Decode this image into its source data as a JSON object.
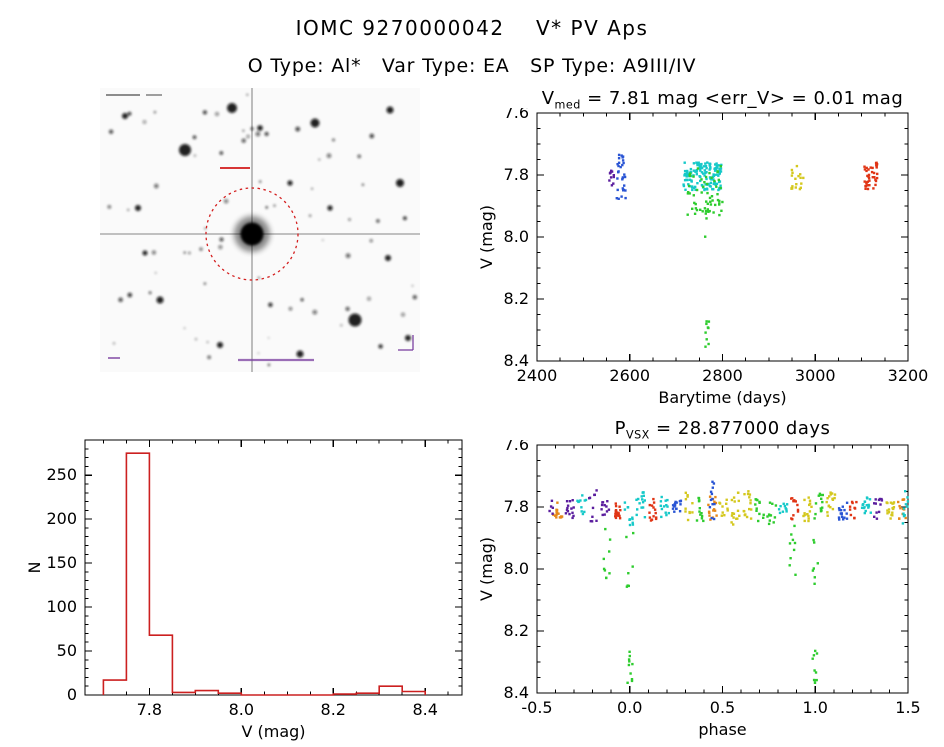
{
  "page": {
    "title": "IOMC 9270000042    V* PV Aps",
    "subtitle": "O Type: Al*   Var Type: EA   SP Type: A9III/IV"
  },
  "finder": {
    "marker_color": "#d42020",
    "annotation_color": "#7a3fa0"
  },
  "chart_data": [
    {
      "id": "lightcurve",
      "type": "scatter",
      "title": {
        "prefix": "V",
        "sub": "med",
        "rest": " = 7.81 mag <err_V> = 0.01 mag"
      },
      "xlabel": "Barytime (days)",
      "ylabel": "V (mag)",
      "xlim": [
        2400,
        3200
      ],
      "ylim": [
        7.6,
        8.4
      ],
      "invert_y": true,
      "xticks": [
        2400,
        2600,
        2800,
        3000,
        3200
      ],
      "xtick_labels": [
        "2400",
        "2600",
        "2800",
        "3000",
        "3200"
      ],
      "yticks": [
        7.6,
        7.8,
        8.0,
        8.2,
        8.4
      ],
      "ytick_labels": [
        "7.6",
        "7.8",
        "8.0",
        "8.2",
        "8.4"
      ],
      "xminor_step": 50,
      "yminor_step": 0.05,
      "median_v_mag": 7.81,
      "mean_err_v": 0.01,
      "clusters": [
        {
          "color": "#5b1e9e",
          "x0": 2556,
          "x1": 2566,
          "y0": 7.78,
          "y1": 7.84,
          "n": 10
        },
        {
          "color": "#2a55d4",
          "x0": 2572,
          "x1": 2592,
          "y0": 7.73,
          "y1": 7.88,
          "n": 30
        },
        {
          "color": "#16c9c9",
          "x0": 2716,
          "x1": 2798,
          "y0": 7.76,
          "y1": 7.85,
          "n": 140
        },
        {
          "color": "#2ecc2e",
          "x0": 2724,
          "x1": 2800,
          "y0": 7.77,
          "y1": 7.93,
          "n": 55
        },
        {
          "color": "#2ecc2e",
          "x0": 2762,
          "x1": 2772,
          "y0": 7.9,
          "y1": 8.02,
          "n": 7
        },
        {
          "color": "#2ecc2e",
          "x0": 2763,
          "x1": 2771,
          "y0": 8.27,
          "y1": 8.36,
          "n": 9
        },
        {
          "color": "#d4c81e",
          "x0": 2948,
          "x1": 2976,
          "y0": 7.77,
          "y1": 7.85,
          "n": 18
        },
        {
          "color": "#e03414",
          "x0": 3106,
          "x1": 3136,
          "y0": 7.76,
          "y1": 7.85,
          "n": 40
        }
      ]
    },
    {
      "id": "histogram",
      "type": "bar",
      "xlabel": "V (mag)",
      "ylabel": "N",
      "xlim": [
        7.66,
        8.48
      ],
      "ylim": [
        0,
        290
      ],
      "xticks": [
        7.8,
        8.0,
        8.2,
        8.4
      ],
      "xtick_labels": [
        "7.8",
        "8.0",
        "8.2",
        "8.4"
      ],
      "yticks": [
        0,
        50,
        100,
        150,
        200,
        250
      ],
      "ytick_labels": [
        "0",
        "50",
        "100",
        "150",
        "200",
        "250"
      ],
      "xminor_step": 0.05,
      "yminor_step": 10,
      "color": "#cc2020",
      "bin_edges": [
        7.7,
        7.75,
        7.8,
        7.85,
        7.9,
        7.95,
        8.0,
        8.05,
        8.1,
        8.15,
        8.2,
        8.25,
        8.3,
        8.35,
        8.4
      ],
      "counts": [
        17,
        275,
        68,
        3,
        5,
        2,
        0,
        0,
        0,
        0,
        1,
        2,
        10,
        4
      ]
    },
    {
      "id": "phase",
      "type": "scatter",
      "title": {
        "prefix": "P",
        "sub": "VSX",
        "rest": " = 28.877000 days"
      },
      "period_days": 28.877,
      "xlabel": "phase",
      "ylabel": "V (mag)",
      "xlim": [
        -0.5,
        1.5
      ],
      "ylim": [
        7.6,
        8.4
      ],
      "invert_y": true,
      "xticks": [
        -0.5,
        0.0,
        0.5,
        1.0,
        1.5
      ],
      "xtick_labels": [
        "-0.5",
        "0.0",
        "0.5",
        "1.0",
        "1.5"
      ],
      "yticks": [
        7.6,
        7.8,
        8.0,
        8.2,
        8.4
      ],
      "ytick_labels": [
        "7.6",
        "7.8",
        "8.0",
        "8.2",
        "8.4"
      ],
      "xminor_step": 0.1,
      "yminor_step": 0.05,
      "band": {
        "x0": -0.42,
        "x1": 1.5,
        "y0": 7.755,
        "y1": 7.855,
        "segments": 30,
        "n_per": 12,
        "palette": [
          "#16c9c9",
          "#2ecc2e",
          "#e03414",
          "#2a55d4",
          "#d4c81e",
          "#5b1e9e",
          "#e6881a"
        ]
      },
      "clusters": [
        {
          "color": "#5b1e9e",
          "x0": -0.44,
          "x1": -0.41,
          "y0": 7.78,
          "y1": 7.83,
          "n": 5
        },
        {
          "color": "#2ecc2e",
          "x0": -0.14,
          "x1": -0.1,
          "y0": 7.86,
          "y1": 8.06,
          "n": 9
        },
        {
          "color": "#2ecc2e",
          "x0": -0.02,
          "x1": 0.02,
          "y0": 7.88,
          "y1": 8.1,
          "n": 7
        },
        {
          "color": "#2ecc2e",
          "x0": -0.015,
          "x1": 0.015,
          "y0": 8.26,
          "y1": 8.37,
          "n": 10
        },
        {
          "color": "#2a55d4",
          "x0": 0.43,
          "x1": 0.46,
          "y0": 7.7,
          "y1": 7.85,
          "n": 12
        },
        {
          "color": "#2ecc2e",
          "x0": 0.86,
          "x1": 0.9,
          "y0": 7.86,
          "y1": 8.06,
          "n": 9
        },
        {
          "color": "#2ecc2e",
          "x0": 0.98,
          "x1": 1.02,
          "y0": 7.88,
          "y1": 8.1,
          "n": 7
        },
        {
          "color": "#2ecc2e",
          "x0": 0.985,
          "x1": 1.015,
          "y0": 8.26,
          "y1": 8.37,
          "n": 10
        },
        {
          "color": "#16c9c9",
          "x0": 1.47,
          "x1": 1.5,
          "y0": 7.72,
          "y1": 7.86,
          "n": 10
        }
      ]
    }
  ]
}
